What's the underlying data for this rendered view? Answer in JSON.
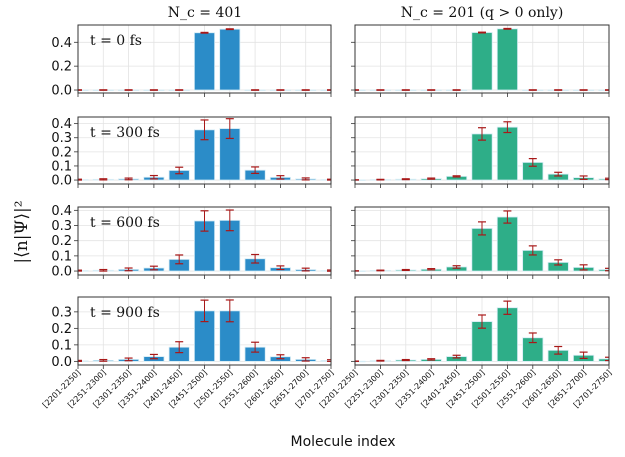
{
  "chart_data": {
    "type": "bar",
    "ylabel": "|⟨n|Ψ⟩|²",
    "xlabel": "Molecule index",
    "categories": [
      "[2201-2250]",
      "[2251-2300]",
      "[2301-2350]",
      "[2351-2400]",
      "[2401-2450]",
      "[2451-2500]",
      "[2501-2550]",
      "[2551-2600]",
      "[2601-2650]",
      "[2651-2700]",
      "[2701-2750]"
    ],
    "columns": [
      {
        "title": "N_c = 401",
        "color": "#2b8cc8"
      },
      {
        "title": "N_c = 201 (q > 0 only)",
        "color": "#2eae88"
      }
    ],
    "error_color": "#a81818",
    "grid": true,
    "rows": [
      {
        "label": "t = 0 fs",
        "ylim": [
          -0.025,
          0.545
        ],
        "yticks": [
          "0.0",
          "0.2",
          "0.4"
        ],
        "series": [
          {
            "values": [
              0,
              0,
              0,
              0,
              0,
              0.48,
              0.51,
              0,
              0,
              0,
              0
            ],
            "errors": [
              0.002,
              0.002,
              0.002,
              0.002,
              0.002,
              0.003,
              0.003,
              0.002,
              0.002,
              0.002,
              0.002
            ]
          },
          {
            "values": [
              0,
              0,
              0,
              0,
              0,
              0.482,
              0.513,
              0,
              0,
              0,
              0
            ],
            "errors": [
              0.002,
              0.002,
              0.002,
              0.002,
              0.002,
              0.003,
              0.003,
              0.002,
              0.002,
              0.002,
              0.002
            ]
          }
        ]
      },
      {
        "label": "t = 300 fs",
        "ylim": [
          -0.028,
          0.447
        ],
        "yticks": [
          "0.0",
          "0.1",
          "0.2",
          "0.3",
          "0.4"
        ],
        "series": [
          {
            "values": [
              0.003,
              0.005,
              0.008,
              0.02,
              0.068,
              0.356,
              0.365,
              0.07,
              0.019,
              0.008,
              0.003
            ],
            "errors": [
              0.003,
              0.004,
              0.006,
              0.012,
              0.023,
              0.07,
              0.07,
              0.023,
              0.012,
              0.007,
              0.003
            ]
          },
          {
            "values": [
              0.001,
              0.003,
              0.006,
              0.01,
              0.026,
              0.327,
              0.375,
              0.125,
              0.042,
              0.017,
              0.008
            ],
            "errors": [
              0.001,
              0.002,
              0.003,
              0.004,
              0.004,
              0.044,
              0.038,
              0.027,
              0.013,
              0.012,
              0.005
            ]
          }
        ]
      },
      {
        "label": "t = 600 fs",
        "ylim": [
          -0.026,
          0.422
        ],
        "yticks": [
          "0.0",
          "0.1",
          "0.2",
          "0.3",
          "0.4"
        ],
        "series": [
          {
            "values": [
              0.003,
              0.005,
              0.011,
              0.02,
              0.077,
              0.33,
              0.334,
              0.081,
              0.022,
              0.01,
              0.003
            ],
            "errors": [
              0.003,
              0.005,
              0.009,
              0.012,
              0.029,
              0.067,
              0.068,
              0.028,
              0.012,
              0.009,
              0.004
            ]
          },
          {
            "values": [
              0.001,
              0.004,
              0.007,
              0.012,
              0.027,
              0.281,
              0.356,
              0.136,
              0.057,
              0.024,
              0.01
            ],
            "errors": [
              0.001,
              0.002,
              0.003,
              0.004,
              0.008,
              0.043,
              0.04,
              0.03,
              0.017,
              0.017,
              0.008
            ]
          }
        ]
      },
      {
        "label": "t = 900 fs",
        "ylim": [
          -0.022,
          0.39
        ],
        "yticks": [
          "0.0",
          "0.1",
          "0.2",
          "0.3"
        ],
        "series": [
          {
            "values": [
              0.003,
              0.006,
              0.012,
              0.029,
              0.086,
              0.306,
              0.306,
              0.086,
              0.028,
              0.012,
              0.005
            ],
            "errors": [
              0.003,
              0.005,
              0.008,
              0.013,
              0.033,
              0.065,
              0.066,
              0.03,
              0.012,
              0.01,
              0.005
            ]
          },
          {
            "values": [
              0.001,
              0.004,
              0.008,
              0.012,
              0.029,
              0.241,
              0.325,
              0.143,
              0.067,
              0.037,
              0.015
            ],
            "errors": [
              0.001,
              0.002,
              0.003,
              0.004,
              0.008,
              0.04,
              0.04,
              0.029,
              0.023,
              0.019,
              0.01
            ]
          }
        ]
      }
    ]
  }
}
